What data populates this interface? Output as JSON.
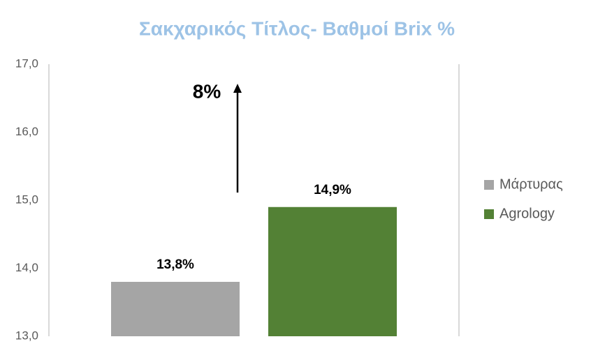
{
  "chart_data": {
    "type": "bar",
    "title": "Σακχαρικός Τίτλος- Βαθμοί Brix %",
    "categories": [
      null
    ],
    "series": [
      {
        "name": "Μάρτυρας",
        "color": "#a5a5a5",
        "values": [
          13.8
        ],
        "value_labels": [
          "13,8%"
        ]
      },
      {
        "name": "Agrology",
        "color": "#538135",
        "values": [
          14.9
        ],
        "value_labels": [
          "14,9%"
        ]
      }
    ],
    "ylim": [
      13,
      17
    ],
    "yticks": [
      {
        "value": 13,
        "label": "13,0"
      },
      {
        "value": 14,
        "label": "14,0"
      },
      {
        "value": 15,
        "label": "15,0"
      },
      {
        "value": 16,
        "label": "16,0"
      },
      {
        "value": 17,
        "label": "17,0"
      }
    ],
    "grid": false,
    "legend": "right",
    "annotations": [
      {
        "text": "8%"
      }
    ]
  }
}
